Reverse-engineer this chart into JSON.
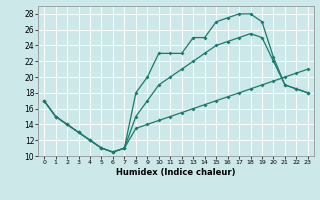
{
  "xlabel": "Humidex (Indice chaleur)",
  "bg_color": "#cce8e8",
  "grid_color": "#ffffff",
  "line_color": "#1a7a6e",
  "xlim": [
    -0.5,
    23.5
  ],
  "ylim": [
    10,
    29
  ],
  "xticks": [
    0,
    1,
    2,
    3,
    4,
    5,
    6,
    7,
    8,
    9,
    10,
    11,
    12,
    13,
    14,
    15,
    16,
    17,
    18,
    19,
    20,
    21,
    22,
    23
  ],
  "yticks": [
    10,
    12,
    14,
    16,
    18,
    20,
    22,
    24,
    26,
    28
  ],
  "curve1_x": [
    0,
    1,
    2,
    3,
    4,
    5,
    6,
    7,
    8,
    9,
    10,
    11,
    12,
    13,
    14,
    15,
    16,
    17,
    18,
    19,
    20,
    21,
    22,
    23
  ],
  "curve1_y": [
    17,
    15,
    14,
    13,
    12,
    11,
    10.5,
    11,
    18,
    20,
    23,
    23,
    23,
    25,
    25,
    27,
    27.5,
    28,
    28,
    27,
    22.5,
    19,
    18.5,
    18
  ],
  "curve2_x": [
    0,
    1,
    2,
    3,
    4,
    5,
    6,
    7,
    8,
    9,
    10,
    11,
    12,
    13,
    14,
    15,
    16,
    17,
    18,
    19,
    20,
    21,
    22,
    23
  ],
  "curve2_y": [
    17,
    15,
    14,
    13,
    12,
    11,
    10.5,
    11,
    13.5,
    14,
    14.5,
    15,
    15.5,
    16,
    16.5,
    17,
    17.5,
    18,
    18.5,
    19,
    19.5,
    20,
    20.5,
    21
  ],
  "curve3_x": [
    0,
    1,
    2,
    3,
    4,
    5,
    6,
    7,
    8,
    9,
    10,
    11,
    12,
    13,
    14,
    15,
    16,
    17,
    18,
    19,
    20,
    21,
    22,
    23
  ],
  "curve3_y": [
    17,
    15,
    14,
    13,
    12,
    11,
    10.5,
    11,
    15,
    17,
    19,
    20,
    21,
    22,
    23,
    24,
    24.5,
    25,
    25.5,
    25,
    22,
    19,
    18.5,
    18
  ]
}
